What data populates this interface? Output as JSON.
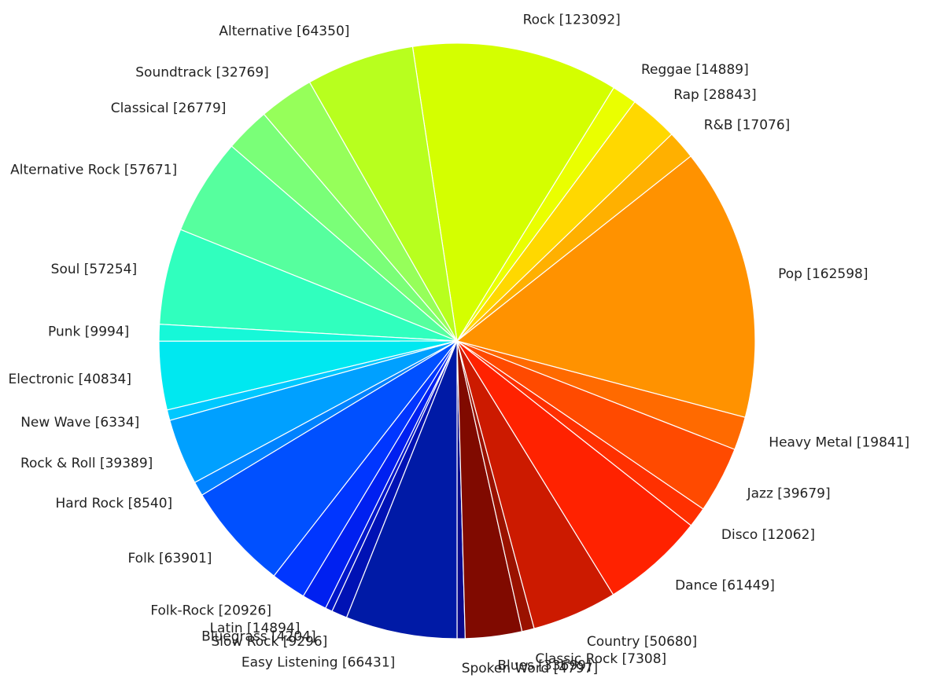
{
  "chart_data": {
    "type": "pie",
    "start_angle_deg": -90,
    "direction": "counterclockwise",
    "slices": [
      {
        "label": "Spoken Word [4797]",
        "value": 4797,
        "color": "#0a0a8c"
      },
      {
        "label": "Blues [33699]",
        "value": 33699,
        "color": "#800a00"
      },
      {
        "label": "Classic Rock [7308]",
        "value": 7308,
        "color": "#9a1200"
      },
      {
        "label": "Country [50680]",
        "value": 50680,
        "color": "#cc1a00"
      },
      {
        "label": "Dance [61449]",
        "value": 61449,
        "color": "#ff2200"
      },
      {
        "label": "Disco [12062]",
        "value": 12062,
        "color": "#ff3000"
      },
      {
        "label": "Jazz [39679]",
        "value": 39679,
        "color": "#ff4a00"
      },
      {
        "label": "Heavy Metal [19841]",
        "value": 19841,
        "color": "#ff6a00"
      },
      {
        "label": "Pop [162598]",
        "value": 162598,
        "color": "#ff9200"
      },
      {
        "label": "R&B [17076]",
        "value": 17076,
        "color": "#ffb000"
      },
      {
        "label": "Rap [28843]",
        "value": 28843,
        "color": "#ffd800"
      },
      {
        "label": "Reggae [14889]",
        "value": 14889,
        "color": "#eaff00"
      },
      {
        "label": "Rock [123092]",
        "value": 123092,
        "color": "#d4ff00"
      },
      {
        "label": "Alternative [64350]",
        "value": 64350,
        "color": "#b8ff1e"
      },
      {
        "label": "Soundtrack [32769]",
        "value": 32769,
        "color": "#96ff5a"
      },
      {
        "label": "Classical [26779]",
        "value": 26779,
        "color": "#7aff78"
      },
      {
        "label": "Alternative Rock [57671]",
        "value": 57671,
        "color": "#56ff9e"
      },
      {
        "label": "Soul [57254]",
        "value": 57254,
        "color": "#30ffbe"
      },
      {
        "label": "Punk [9994]",
        "value": 9994,
        "color": "#16f8d8"
      },
      {
        "label": "Electronic [40834]",
        "value": 40834,
        "color": "#00e8f0"
      },
      {
        "label": "New Wave [6334]",
        "value": 6334,
        "color": "#00c8ff"
      },
      {
        "label": "Rock & Roll [39389]",
        "value": 39389,
        "color": "#00a0ff"
      },
      {
        "label": "Hard Rock [8540]",
        "value": 8540,
        "color": "#0082ff"
      },
      {
        "label": "Folk [63901]",
        "value": 63901,
        "color": "#0050ff"
      },
      {
        "label": "Folk-Rock [20926]",
        "value": 20926,
        "color": "#0036ff"
      },
      {
        "label": "Latin [14894]",
        "value": 14894,
        "color": "#0020f0"
      },
      {
        "label": "Bluegrass [4204]",
        "value": 4204,
        "color": "#0016c8"
      },
      {
        "label": "Slow Rock [9296]",
        "value": 9296,
        "color": "#0012b4"
      },
      {
        "label": "Easy Listening [66431]",
        "value": 66431,
        "color": "#001aa6"
      }
    ]
  }
}
